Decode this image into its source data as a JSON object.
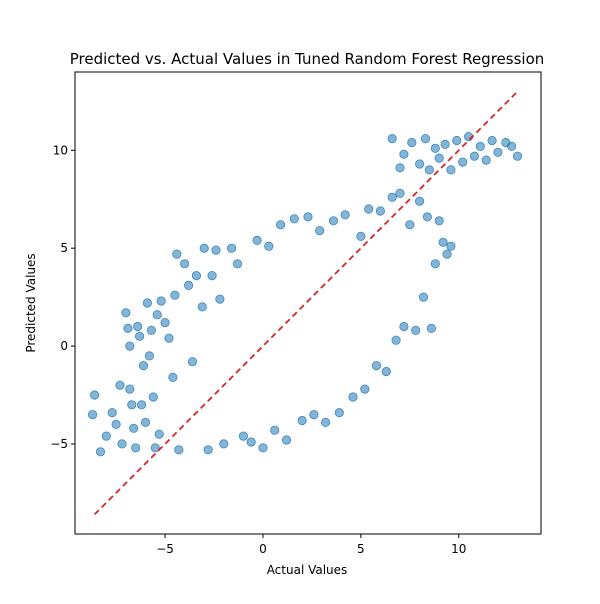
{
  "chart_data": {
    "type": "scatter",
    "title": "Predicted vs. Actual Values in Tuned Random Forest Regression",
    "xlabel": "Actual Values",
    "ylabel": "Predicted Values",
    "xlim": [
      -9.6,
      14.2
    ],
    "ylim": [
      -9.6,
      14.0
    ],
    "xticks": [
      -5,
      0,
      5,
      10
    ],
    "xtick_labels": [
      "−5",
      "0",
      "5",
      "10"
    ],
    "yticks": [
      -5,
      0,
      5,
      10
    ],
    "ytick_labels": [
      "−5",
      "0",
      "5",
      "10"
    ],
    "grid": false,
    "legend": false,
    "point_color": "#1f77b4",
    "point_alpha": 0.55,
    "reference_line": {
      "x": [
        -8.6,
        13.0
      ],
      "y": [
        -8.6,
        13.0
      ],
      "color": "#d62728",
      "style": "dashed"
    },
    "series": [
      {
        "points": [
          [
            -8.6,
            -2.5
          ],
          [
            -8.7,
            -3.5
          ],
          [
            -8.3,
            -5.4
          ],
          [
            -8.0,
            -4.6
          ],
          [
            -7.7,
            -3.4
          ],
          [
            -7.5,
            -4.0
          ],
          [
            -7.3,
            -2.0
          ],
          [
            -7.2,
            -5.0
          ],
          [
            -7.0,
            1.7
          ],
          [
            -6.9,
            0.9
          ],
          [
            -6.8,
            0.0
          ],
          [
            -6.8,
            -2.2
          ],
          [
            -6.7,
            -3.0
          ],
          [
            -6.6,
            -4.2
          ],
          [
            -6.5,
            -5.2
          ],
          [
            -6.4,
            1.0
          ],
          [
            -6.3,
            0.5
          ],
          [
            -6.2,
            -3.0
          ],
          [
            -6.1,
            -1.0
          ],
          [
            -6.0,
            -3.9
          ],
          [
            -5.9,
            2.2
          ],
          [
            -5.8,
            -0.5
          ],
          [
            -5.7,
            0.8
          ],
          [
            -5.6,
            -2.6
          ],
          [
            -5.5,
            -5.2
          ],
          [
            -5.4,
            1.6
          ],
          [
            -5.3,
            -4.5
          ],
          [
            -5.2,
            2.3
          ],
          [
            -5.0,
            1.2
          ],
          [
            -4.8,
            0.4
          ],
          [
            -4.6,
            -1.6
          ],
          [
            -4.5,
            2.6
          ],
          [
            -4.4,
            4.7
          ],
          [
            -4.3,
            -5.3
          ],
          [
            -4.0,
            4.2
          ],
          [
            -3.8,
            3.1
          ],
          [
            -3.6,
            -0.8
          ],
          [
            -3.4,
            3.6
          ],
          [
            -3.1,
            2.0
          ],
          [
            -3.0,
            5.0
          ],
          [
            -2.8,
            -5.3
          ],
          [
            -2.6,
            3.6
          ],
          [
            -2.4,
            4.9
          ],
          [
            -2.2,
            2.4
          ],
          [
            -2.0,
            -5.0
          ],
          [
            -1.6,
            5.0
          ],
          [
            -1.3,
            4.2
          ],
          [
            -1.0,
            -4.6
          ],
          [
            -0.6,
            -4.9
          ],
          [
            -0.3,
            5.4
          ],
          [
            0.0,
            -5.2
          ],
          [
            0.3,
            5.1
          ],
          [
            0.6,
            -4.3
          ],
          [
            0.9,
            6.2
          ],
          [
            1.2,
            -4.8
          ],
          [
            1.6,
            6.5
          ],
          [
            2.0,
            -3.8
          ],
          [
            2.3,
            6.6
          ],
          [
            2.6,
            -3.5
          ],
          [
            2.9,
            5.9
          ],
          [
            3.2,
            -3.9
          ],
          [
            3.6,
            6.4
          ],
          [
            3.9,
            -3.4
          ],
          [
            4.2,
            6.7
          ],
          [
            4.6,
            -2.6
          ],
          [
            5.0,
            5.6
          ],
          [
            5.2,
            -2.2
          ],
          [
            5.4,
            7.0
          ],
          [
            5.8,
            -1.0
          ],
          [
            6.0,
            6.9
          ],
          [
            6.3,
            -1.3
          ],
          [
            6.6,
            7.6
          ],
          [
            6.8,
            0.3
          ],
          [
            7.0,
            7.8
          ],
          [
            7.2,
            1.0
          ],
          [
            7.5,
            6.2
          ],
          [
            7.8,
            0.8
          ],
          [
            8.0,
            7.4
          ],
          [
            8.2,
            2.5
          ],
          [
            8.4,
            6.6
          ],
          [
            8.6,
            0.9
          ],
          [
            8.8,
            4.2
          ],
          [
            9.0,
            6.4
          ],
          [
            9.2,
            5.3
          ],
          [
            9.4,
            4.7
          ],
          [
            9.6,
            5.1
          ],
          [
            6.6,
            10.6
          ],
          [
            7.0,
            9.1
          ],
          [
            7.2,
            9.8
          ],
          [
            7.6,
            10.4
          ],
          [
            8.0,
            9.3
          ],
          [
            8.3,
            10.6
          ],
          [
            8.5,
            9.0
          ],
          [
            8.8,
            10.1
          ],
          [
            9.0,
            9.6
          ],
          [
            9.3,
            10.3
          ],
          [
            9.6,
            9.0
          ],
          [
            9.9,
            10.5
          ],
          [
            10.2,
            9.4
          ],
          [
            10.5,
            10.7
          ],
          [
            10.8,
            9.7
          ],
          [
            11.1,
            10.2
          ],
          [
            11.4,
            9.5
          ],
          [
            11.7,
            10.5
          ],
          [
            12.0,
            9.9
          ],
          [
            12.4,
            10.4
          ],
          [
            12.7,
            10.2
          ],
          [
            13.0,
            9.7
          ]
        ]
      }
    ]
  }
}
